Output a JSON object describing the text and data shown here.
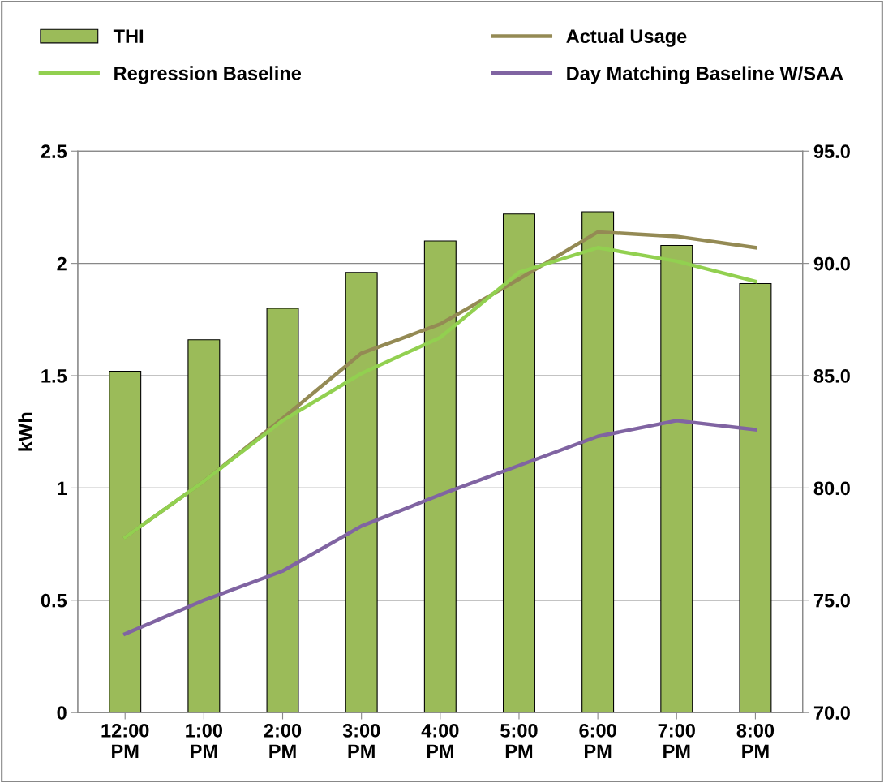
{
  "chart_data": {
    "type": "line",
    "ylabel": "kWh",
    "categories": [
      "12:00\nPM",
      "1:00\nPM",
      "2:00\nPM",
      "3:00\nPM",
      "4:00\nPM",
      "5:00\nPM",
      "6:00\nPM",
      "7:00\nPM",
      "8:00\nPM"
    ],
    "series": [
      {
        "name": "THI",
        "type": "bar",
        "axis": "y2",
        "color": "#9bbb59",
        "values": [
          85.2,
          86.6,
          88.0,
          89.6,
          91.0,
          92.2,
          92.3,
          90.8,
          89.1
        ]
      },
      {
        "name": "Actual Usage",
        "color": "#948a54",
        "values": [
          0.78,
          1.03,
          1.31,
          1.6,
          1.73,
          1.93,
          2.14,
          2.12,
          2.07
        ]
      },
      {
        "name": "Regression Baseline",
        "color": "#92d050",
        "values": [
          0.78,
          1.03,
          1.3,
          1.51,
          1.67,
          1.96,
          2.07,
          2.01,
          1.92
        ]
      },
      {
        "name": "Day Matching Baseline W/SAA",
        "color": "#8064a2",
        "values": [
          0.35,
          0.5,
          0.63,
          0.83,
          0.97,
          1.1,
          1.23,
          1.3,
          1.26
        ]
      }
    ],
    "ylim": [
      0,
      2.5
    ],
    "yticks": [
      0,
      0.5,
      1,
      1.5,
      2,
      2.5
    ],
    "y2lim": [
      70,
      95
    ],
    "y2ticks": [
      {
        "value": 70,
        "label": "70.0"
      },
      {
        "value": 75,
        "label": "75.0"
      },
      {
        "value": 80,
        "label": "80.0"
      },
      {
        "value": 85,
        "label": "85.0"
      },
      {
        "value": 90,
        "label": "90.0"
      },
      {
        "value": 95,
        "label": "95.0"
      }
    ],
    "grid": "y",
    "legend": "top",
    "marker": "none",
    "line_style": "solid"
  }
}
